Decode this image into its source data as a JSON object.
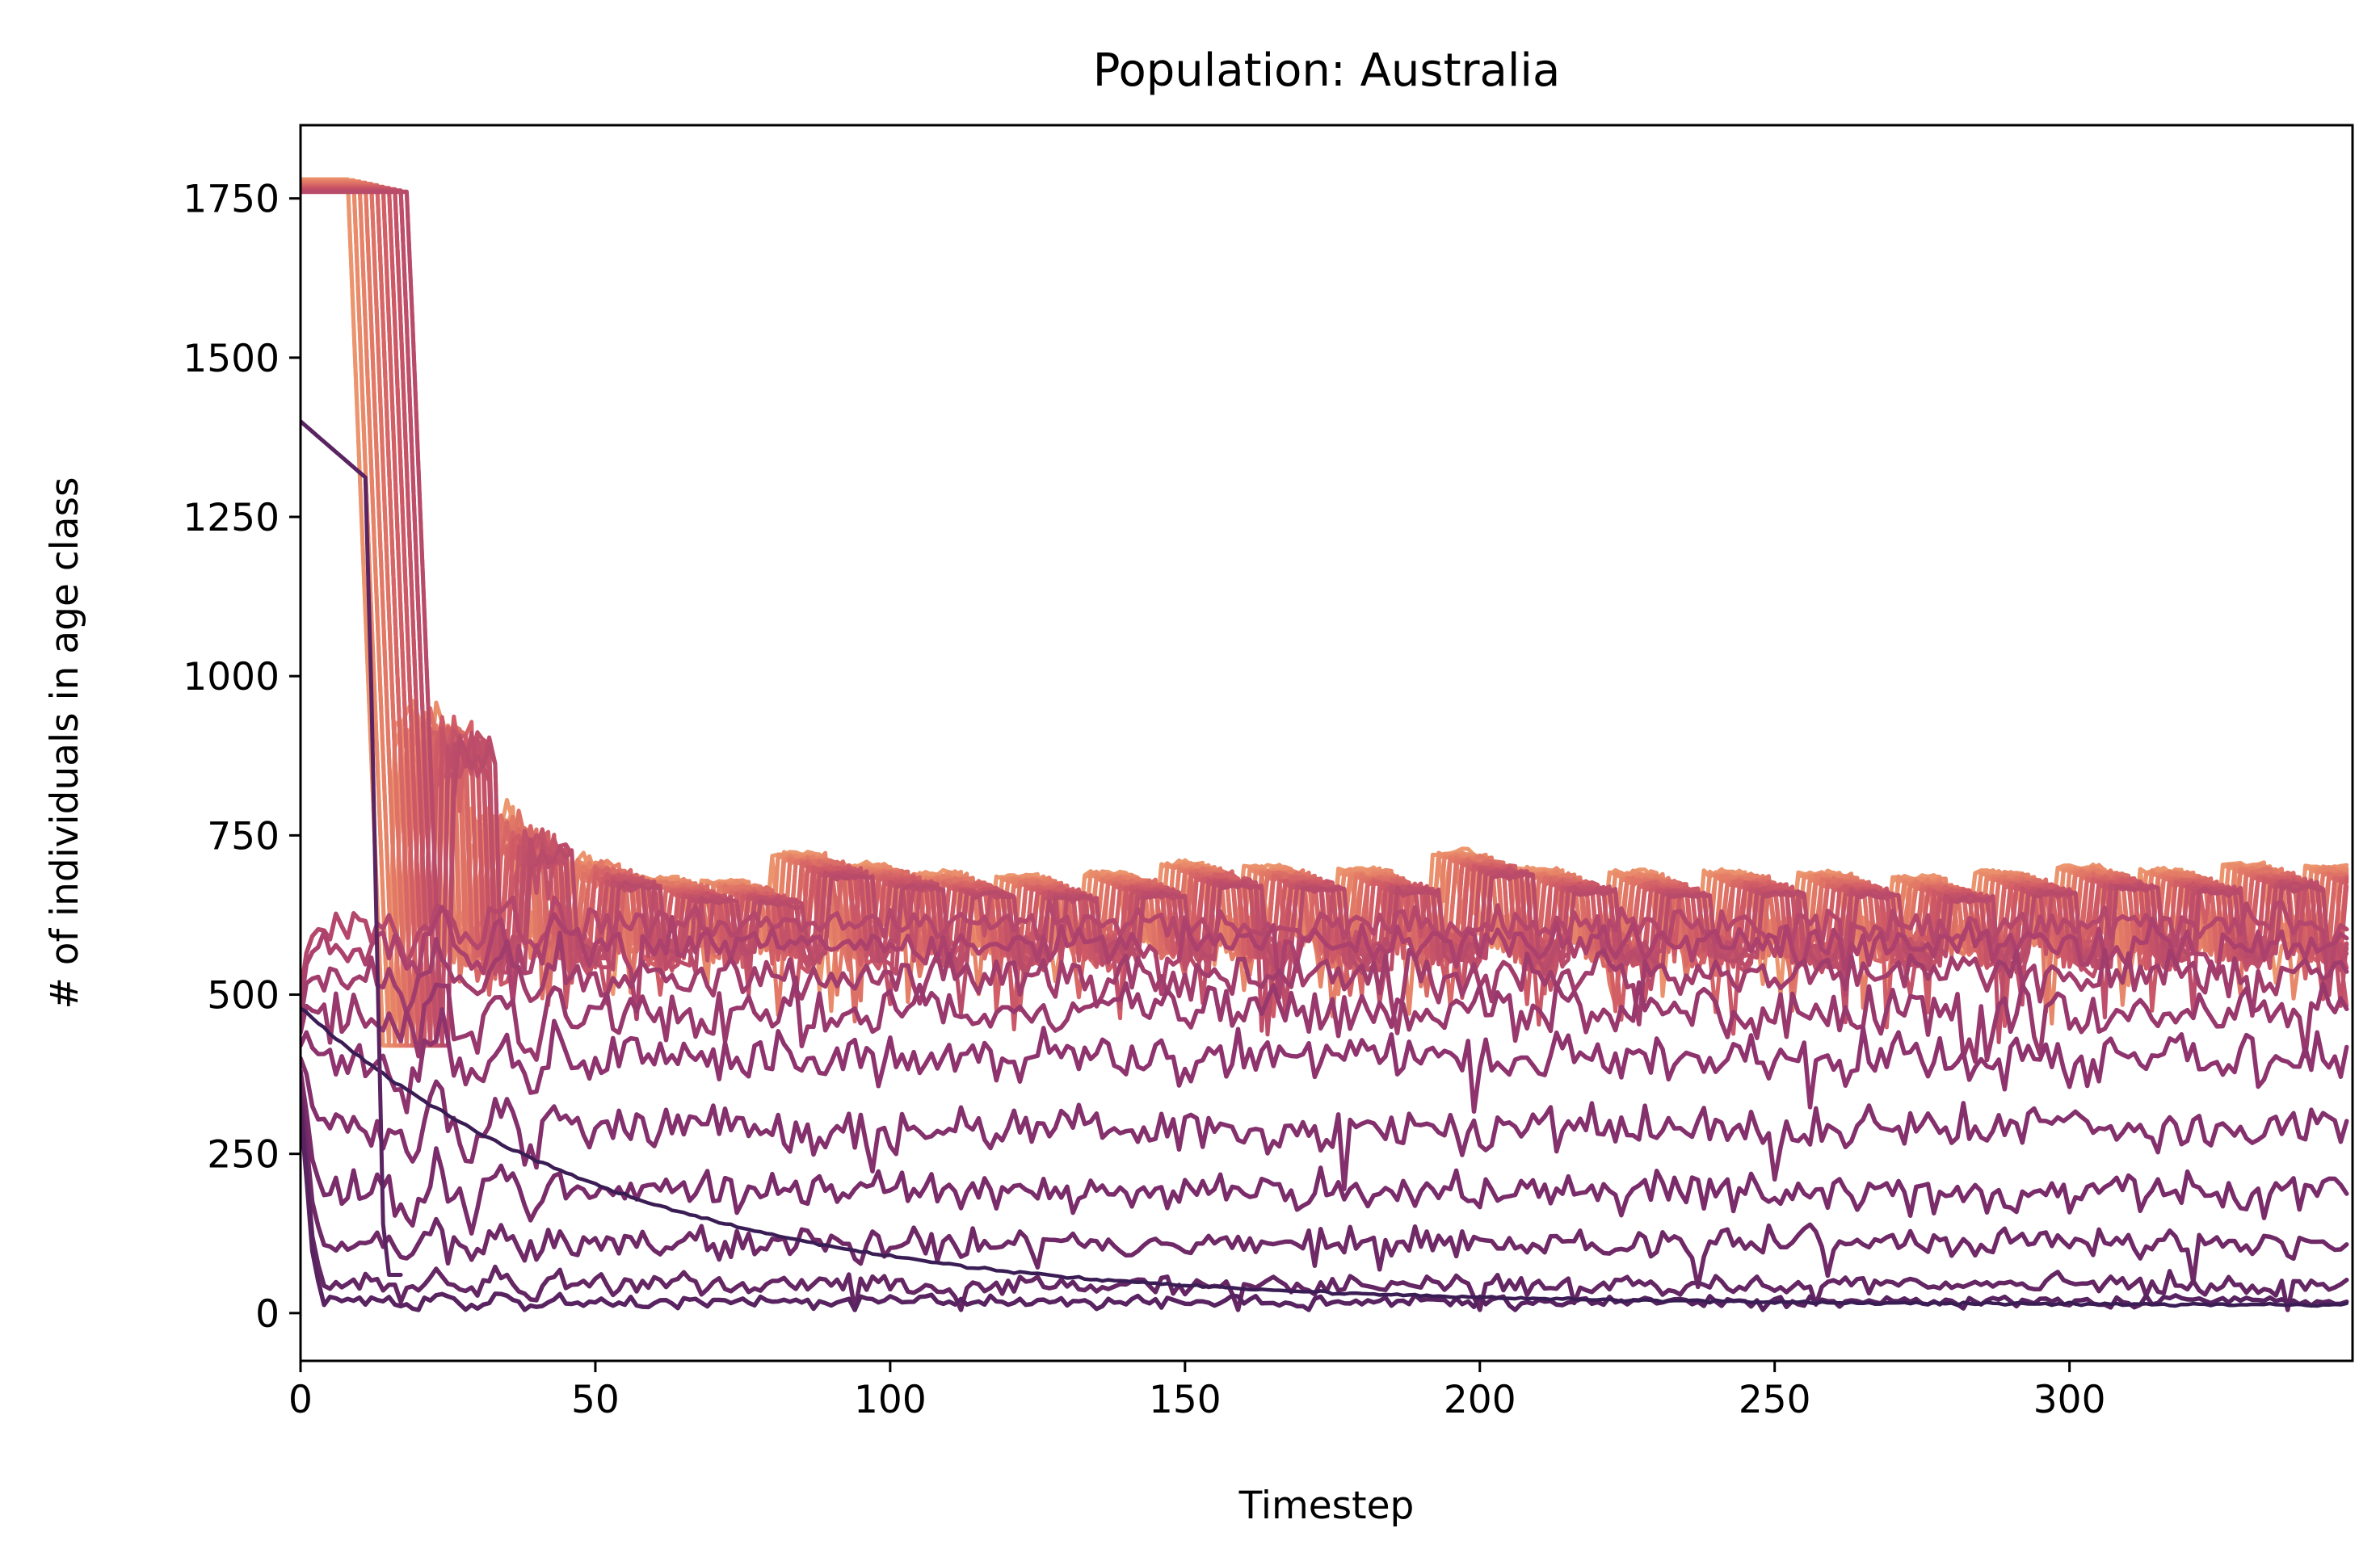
{
  "chart_data": {
    "type": "line",
    "title": "Population: Australia",
    "xlabel": "Timestep",
    "ylabel": "# of individuals in age class",
    "xlim": [
      0,
      348
    ],
    "ylim": [
      -75,
      1865
    ],
    "x_ticks": [
      0,
      50,
      100,
      150,
      200,
      250,
      300
    ],
    "y_ticks": [
      0,
      250,
      500,
      750,
      1000,
      1250,
      1500,
      1750
    ],
    "grid": false,
    "legend": "none",
    "palette": [
      "#f0a372",
      "#e47c66",
      "#cf5a66",
      "#b0446c",
      "#8e336e",
      "#6a2766",
      "#3e1e56"
    ],
    "generator": {
      "timesteps": 348,
      "n_age_classes": 42,
      "initial_value": 1780,
      "initial_duration": 10,
      "initial_spread": 0.3,
      "cohort_peaks": [
        [
          0,
          1780
        ],
        [
          16,
          905
        ],
        [
          29,
          755
        ],
        [
          44,
          705
        ],
        [
          57,
          682
        ],
        [
          68,
          678
        ],
        [
          80,
          720
        ],
        [
          92,
          702
        ],
        [
          104,
          690
        ],
        [
          118,
          686
        ],
        [
          133,
          690
        ],
        [
          146,
          705
        ],
        [
          160,
          700
        ],
        [
          176,
          695
        ],
        [
          192,
          722
        ],
        [
          206,
          695
        ],
        [
          222,
          690
        ],
        [
          238,
          692
        ],
        [
          254,
          690
        ],
        [
          270,
          683
        ],
        [
          284,
          692
        ],
        [
          298,
          700
        ],
        [
          312,
          695
        ],
        [
          326,
          703
        ],
        [
          340,
          700
        ]
      ],
      "cohort_width": 8,
      "lower_band_levels": [
        18,
        45,
        110,
        190,
        290,
        400,
        470,
        530,
        580,
        610
      ],
      "lower_band_noise": [
        4,
        7,
        10,
        14,
        16,
        18,
        18,
        16,
        14,
        12
      ],
      "decline_start": 480,
      "decline_end": 12,
      "decline_rate": 0.018
    }
  }
}
